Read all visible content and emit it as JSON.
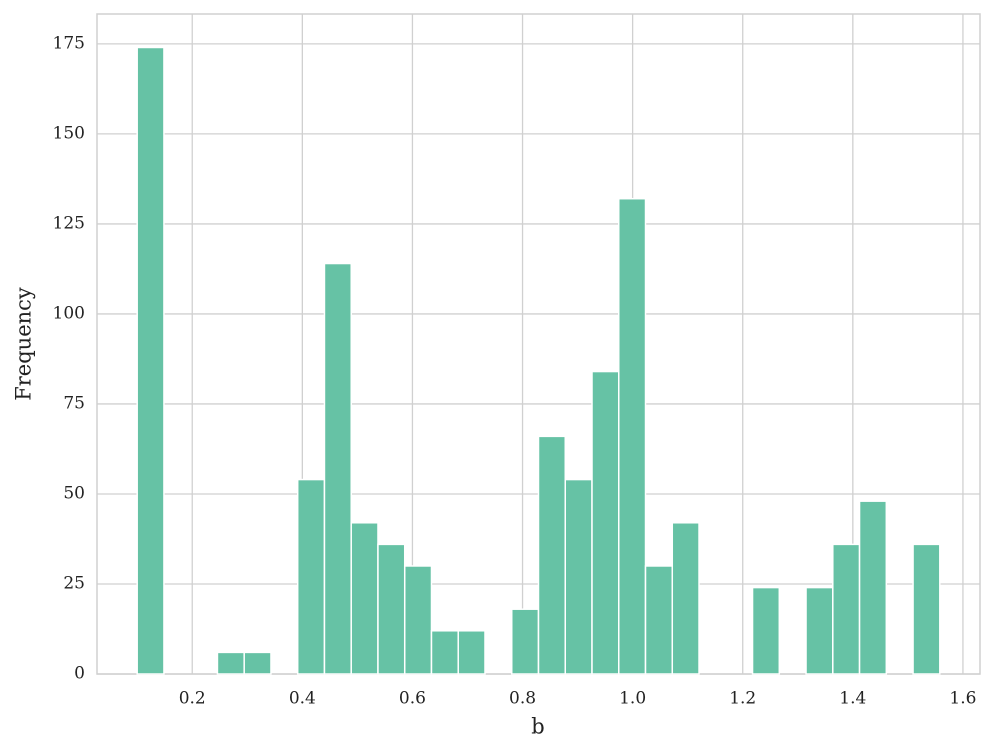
{
  "chart_data": {
    "type": "histogram",
    "xlabel": "b",
    "ylabel": "Frequency",
    "bins": [
      0.1,
      0.1486,
      0.1972,
      0.2458,
      0.2944,
      0.343,
      0.3916,
      0.4402,
      0.4888,
      0.5374,
      0.586,
      0.6346,
      0.6832,
      0.7318,
      0.7804,
      0.829,
      0.8776,
      0.9262,
      0.9748,
      1.0234,
      1.072,
      1.1206,
      1.1692,
      1.2178,
      1.2664,
      1.315,
      1.3636,
      1.4122,
      1.4608,
      1.5094,
      1.558
    ],
    "values": [
      174,
      0,
      0,
      6,
      6,
      0,
      54,
      114,
      42,
      36,
      30,
      12,
      12,
      0,
      18,
      66,
      54,
      84,
      132,
      30,
      42,
      0,
      0,
      24,
      0,
      24,
      36,
      48,
      0,
      36
    ],
    "color": "#66c2a5",
    "xlim": [
      0.027,
      1.631
    ],
    "ylim": [
      0,
      183.3
    ],
    "xticks": [
      0.2,
      0.4,
      0.6,
      0.8,
      {
        "value": 1,
        "label": "1.0"
      },
      1.2,
      1.4,
      1.6
    ],
    "yticks": [
      0,
      25,
      50,
      75,
      100,
      125,
      150,
      175
    ],
    "grid": true
  }
}
